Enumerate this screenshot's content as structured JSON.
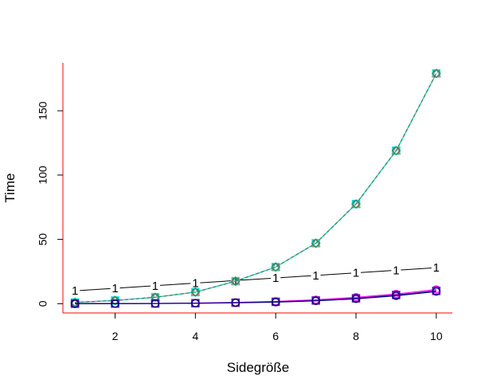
{
  "chart_data": {
    "type": "line",
    "title": "",
    "xlabel": "Sidegröße",
    "ylabel": "Time",
    "xlim": [
      0.7,
      10.4
    ],
    "ylim": [
      -7.2,
      187.2
    ],
    "xticks": [
      2,
      4,
      6,
      8,
      10
    ],
    "yticks": [
      0,
      50,
      100,
      150
    ],
    "axis_color": "#ff0000",
    "grid": false,
    "legend": "none",
    "x": [
      1,
      2,
      3,
      4,
      5,
      6,
      7,
      8,
      9,
      10
    ],
    "series": [
      {
        "marker": "1",
        "color": "#000000",
        "values": [
          10,
          12,
          14,
          16,
          18,
          20,
          22,
          24,
          26,
          28
        ]
      },
      {
        "marker": "circle",
        "color": "#ff0000",
        "values": [
          1,
          2.5,
          5,
          9,
          17.5,
          28.5,
          47,
          77.5,
          119,
          179
        ]
      },
      {
        "marker": "square",
        "color": "#00e5ee",
        "values": [
          1,
          2.5,
          5,
          9,
          17.5,
          28.5,
          47,
          77.5,
          119,
          179
        ]
      },
      {
        "marker": "triangle",
        "color": "#9e9e9e",
        "values": [
          1,
          2.5,
          5,
          9,
          17.5,
          28.5,
          47,
          77.5,
          119,
          179
        ]
      },
      {
        "marker": "diamond",
        "color": "#2e8b57",
        "values": [
          1,
          2.5,
          5,
          9,
          17.5,
          28.5,
          47,
          77.5,
          119,
          179
        ]
      },
      {
        "marker": "circle",
        "color": "#ff00ff",
        "values": [
          0,
          0.1,
          0.2,
          0.5,
          1,
          1.8,
          3,
          5,
          7.5,
          11
        ]
      },
      {
        "marker": "square",
        "color": "#6a0dad",
        "values": [
          0,
          0.1,
          0.2,
          0.4,
          0.8,
          1.5,
          2.5,
          4.2,
          6.8,
          10
        ]
      },
      {
        "marker": "circle",
        "color": "#000080",
        "values": [
          0,
          0.05,
          0.15,
          0.35,
          0.7,
          1.2,
          2.2,
          3.8,
          6.2,
          9.5
        ]
      }
    ]
  }
}
